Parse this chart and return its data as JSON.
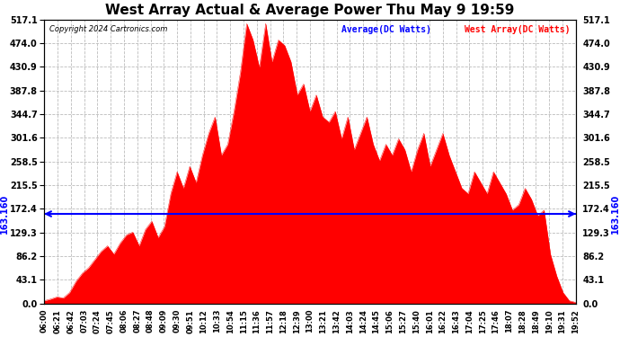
{
  "title": "West Array Actual & Average Power Thu May 9 19:59",
  "copyright": "Copyright 2024 Cartronics.com",
  "legend_average": "Average(DC Watts)",
  "legend_west": "West Array(DC Watts)",
  "average_value": 163.16,
  "y_min": 0.0,
  "y_max": 517.1,
  "y_ticks": [
    0.0,
    43.1,
    86.2,
    129.3,
    172.4,
    215.5,
    258.5,
    301.6,
    344.7,
    387.8,
    430.9,
    474.0,
    517.1
  ],
  "background_color": "#ffffff",
  "fill_color": "#ff0000",
  "line_color": "#0000ff",
  "grid_color": "#bbbbbb",
  "title_color": "#000000",
  "avg_label_color": "#0000ff",
  "west_label_color": "#ff0000",
  "avg_line_label": "163.160",
  "x_labels": [
    "06:00",
    "06:21",
    "06:42",
    "07:03",
    "07:24",
    "07:45",
    "08:06",
    "08:27",
    "08:48",
    "09:09",
    "09:30",
    "09:51",
    "10:12",
    "10:33",
    "10:54",
    "11:15",
    "11:36",
    "11:57",
    "12:18",
    "12:39",
    "13:00",
    "13:21",
    "13:42",
    "14:03",
    "14:24",
    "14:45",
    "15:06",
    "15:27",
    "15:40",
    "16:01",
    "16:22",
    "16:43",
    "17:04",
    "17:25",
    "17:46",
    "18:07",
    "18:28",
    "18:49",
    "19:10",
    "19:31",
    "19:52"
  ],
  "west_array_data": [
    5,
    8,
    12,
    10,
    20,
    40,
    55,
    65,
    80,
    95,
    105,
    90,
    110,
    125,
    130,
    105,
    135,
    150,
    120,
    140,
    200,
    240,
    210,
    250,
    220,
    270,
    310,
    340,
    270,
    290,
    350,
    420,
    510,
    480,
    430,
    510,
    440,
    480,
    470,
    440,
    380,
    400,
    350,
    380,
    340,
    330,
    350,
    300,
    340,
    280,
    310,
    340,
    290,
    260,
    290,
    270,
    300,
    280,
    240,
    280,
    310,
    250,
    280,
    310,
    270,
    240,
    210,
    200,
    240,
    220,
    200,
    240,
    220,
    200,
    170,
    180,
    210,
    190,
    160,
    170,
    90,
    50,
    20,
    5,
    2
  ],
  "x_label_step": 1
}
